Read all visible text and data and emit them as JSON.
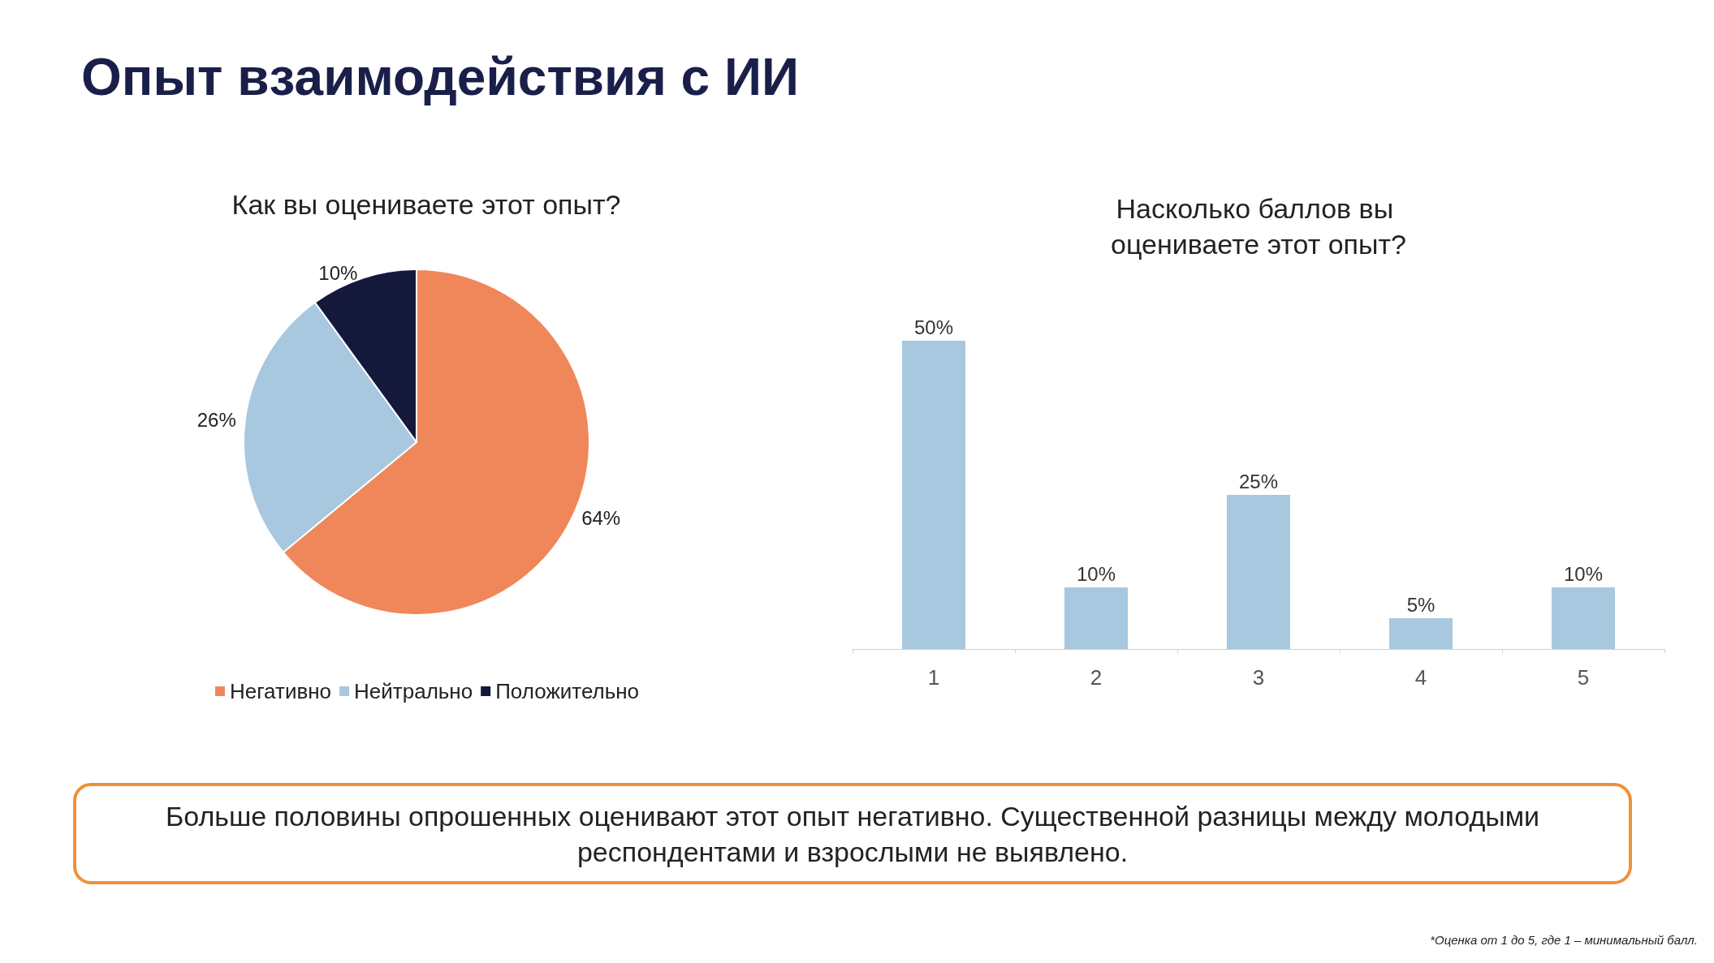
{
  "chart_data": [
    {
      "type": "pie",
      "title": "Опыт взаимодействия с ИИ",
      "subtitle": "Как вы оцениваете этот опыт?",
      "categories": [
        "Негативно",
        "Нейтрально",
        "Положительно"
      ],
      "values": [
        64,
        26,
        10
      ],
      "value_labels": [
        "64%",
        "26%",
        "10%"
      ],
      "colors": [
        "#f0875a",
        "#a8c8e0",
        "#14193c"
      ],
      "legend": "bottom"
    },
    {
      "type": "bar",
      "title": "Насколько баллов вы оцениваете этот опыт?",
      "categories": [
        "1",
        "2",
        "3",
        "4",
        "5"
      ],
      "values": [
        50,
        10,
        25,
        5,
        10
      ],
      "value_labels": [
        "50%",
        "10%",
        "25%",
        "5%",
        "10%"
      ],
      "color": "#a8c8e0",
      "annotations": [
        "Больше половины опрошенных оценивают этот опыт негативно. Существенной разницы между молодыми респондентами и взрослыми не выявлено.",
        "*Оценка от 1 до 5, где 1 – минимальный балл."
      ]
    }
  ]
}
